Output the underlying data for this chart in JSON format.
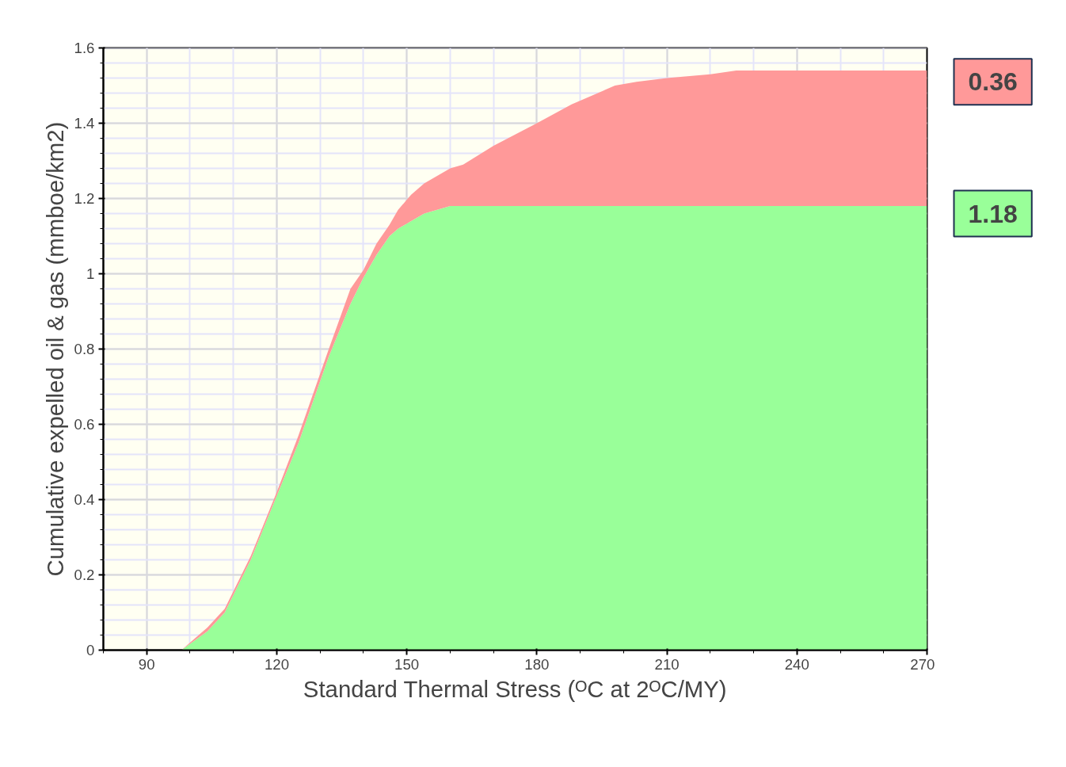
{
  "chart_data": {
    "type": "area",
    "stacked": true,
    "xlabel": "Standard Thermal Stress (ᴼC at 2ᴼC/MY)",
    "ylabel": "Cumulative expelled oil & gas (mmboe/km2)",
    "x": [
      98,
      104,
      108,
      114,
      120,
      125,
      132,
      137,
      140,
      143,
      146,
      148,
      151,
      154,
      157,
      160,
      163,
      170,
      180,
      188,
      198,
      203,
      210,
      220,
      226,
      247,
      270
    ],
    "series": [
      {
        "color": "#99ff99",
        "values": [
          0,
          0.05,
          0.1,
          0.24,
          0.41,
          0.55,
          0.78,
          0.92,
          0.99,
          1.05,
          1.1,
          1.12,
          1.14,
          1.16,
          1.17,
          1.18,
          1.18,
          1.18,
          1.18,
          1.18,
          1.18,
          1.18,
          1.18,
          1.18,
          1.18,
          1.18,
          1.18
        ]
      },
      {
        "color": "#ff9999",
        "values": [
          0,
          0.01,
          0.01,
          0.01,
          0.01,
          0.02,
          0.02,
          0.04,
          0.02,
          0.03,
          0.03,
          0.05,
          0.07,
          0.08,
          0.09,
          0.1,
          0.11,
          0.16,
          0.22,
          0.27,
          0.32,
          0.33,
          0.34,
          0.35,
          0.36,
          0.36,
          0.36
        ]
      }
    ],
    "annotations": [
      {
        "text": "0.36",
        "x": 270,
        "y": 1.51
      },
      {
        "text": "1.18",
        "x": 270,
        "y": 1.16
      }
    ],
    "xlim": [
      80,
      270
    ],
    "xticks": [
      90,
      120,
      150,
      180,
      210,
      240,
      270
    ],
    "ylim": [
      0,
      1.6
    ],
    "yticks": [
      0,
      0.2,
      0.4,
      0.6,
      0.8,
      1,
      1.2,
      1.4,
      1.6
    ],
    "grid": true
  }
}
